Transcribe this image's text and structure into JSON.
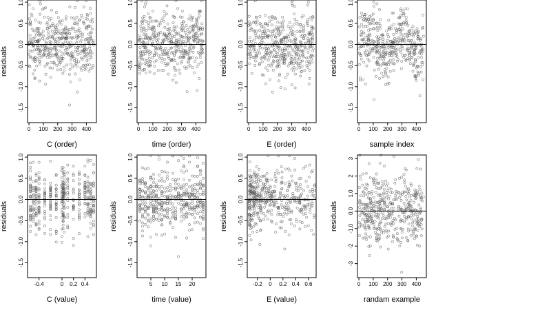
{
  "chart_data": [
    {
      "type": "scatter",
      "xlabel": "C (order)",
      "ylabel": "residuals",
      "xlim": [
        -10,
        470
      ],
      "ylim": [
        -1.85,
        1.05
      ],
      "xticks": [
        0,
        100,
        200,
        300,
        400
      ],
      "yticks": [
        -1.5,
        -1.0,
        -0.5,
        0.0,
        0.5,
        1.0
      ],
      "reference_line_y": 0,
      "n": 450,
      "x_kind": "index",
      "x_range": [
        0,
        450
      ],
      "pattern": "none",
      "sd": 0.38,
      "seed": 11
    },
    {
      "type": "scatter",
      "xlabel": "time (order)",
      "ylabel": "residuals",
      "xlim": [
        -10,
        470
      ],
      "ylim": [
        -1.85,
        1.05
      ],
      "xticks": [
        0,
        100,
        200,
        300,
        400
      ],
      "yticks": [
        -1.5,
        -1.0,
        -0.5,
        0.0,
        0.5,
        1.0
      ],
      "reference_line_y": 0,
      "n": 450,
      "x_kind": "index",
      "x_range": [
        0,
        450
      ],
      "pattern": "none",
      "sd": 0.38,
      "seed": 23
    },
    {
      "type": "scatter",
      "xlabel": "E (order)",
      "ylabel": "residuals",
      "xlim": [
        -10,
        470
      ],
      "ylim": [
        -1.85,
        1.05
      ],
      "xticks": [
        0,
        100,
        200,
        300,
        400
      ],
      "yticks": [
        -1.5,
        -1.0,
        -0.5,
        0.0,
        0.5,
        1.0
      ],
      "reference_line_y": 0,
      "n": 450,
      "x_kind": "index",
      "x_range": [
        0,
        450
      ],
      "pattern": "none",
      "sd": 0.38,
      "seed": 37
    },
    {
      "type": "scatter",
      "xlabel": "sample index",
      "ylabel": "residuals",
      "xlim": [
        -10,
        470
      ],
      "ylim": [
        -1.85,
        1.05
      ],
      "xticks": [
        0,
        100,
        200,
        300,
        400
      ],
      "yticks": [
        -1.5,
        -1.0,
        -0.5,
        0.0,
        0.5,
        1.0
      ],
      "reference_line_y": 0,
      "n": 450,
      "x_kind": "index",
      "x_range": [
        0,
        450
      ],
      "pattern": "waves",
      "sd": 0.38,
      "seed": 41
    },
    {
      "type": "scatter",
      "xlabel": "C (value)",
      "ylabel": "residuals",
      "xlim": [
        -0.6,
        0.6
      ],
      "ylim": [
        -1.85,
        1.05
      ],
      "xticks": [
        -0.4,
        0.0,
        0.2,
        0.4
      ],
      "yticks": [
        -1.5,
        -1.0,
        -0.5,
        0.0,
        0.5,
        1.0
      ],
      "reference_line_y": 0,
      "n": 450,
      "x_kind": "discrete",
      "x_levels": [
        -0.55,
        -0.5,
        -0.45,
        -0.4,
        -0.3,
        -0.2,
        -0.1,
        0.0,
        0.02,
        0.04,
        0.1,
        0.2,
        0.3,
        0.4,
        0.45,
        0.5,
        0.55
      ],
      "pattern": "none",
      "sd": 0.38,
      "seed": 53
    },
    {
      "type": "scatter",
      "xlabel": "time (value)",
      "ylabel": "residuals",
      "xlim": [
        0,
        25
      ],
      "ylim": [
        -1.85,
        1.05
      ],
      "xticks": [
        5,
        10,
        15,
        20
      ],
      "yticks": [
        -1.5,
        -1.0,
        -0.5,
        0.0,
        0.5,
        1.0
      ],
      "reference_line_y": 0,
      "n": 450,
      "x_kind": "discrete",
      "x_levels": [
        1,
        2,
        3,
        4,
        5,
        6,
        7,
        8,
        9,
        10,
        11,
        12,
        13,
        14,
        15,
        16,
        17,
        18,
        19,
        20,
        21,
        22,
        23,
        24
      ],
      "pattern": "none",
      "sd": 0.38,
      "seed": 67
    },
    {
      "type": "scatter",
      "xlabel": "E (value)",
      "ylabel": "residuals",
      "xlim": [
        -0.36,
        0.72
      ],
      "ylim": [
        -1.85,
        1.05
      ],
      "xticks": [
        -0.2,
        0.0,
        0.2,
        0.4,
        0.6
      ],
      "yticks": [
        -1.5,
        -1.0,
        -0.5,
        0.0,
        0.5,
        1.0
      ],
      "reference_line_y": 0,
      "n": 450,
      "x_kind": "skewed",
      "x_range": [
        -0.33,
        0.7
      ],
      "pattern": "none",
      "sd": 0.38,
      "seed": 79
    },
    {
      "type": "scatter",
      "xlabel": "randam example",
      "ylabel": "residuals",
      "xlim": [
        -10,
        470
      ],
      "ylim": [
        -3.8,
        3.2
      ],
      "xticks": [
        0,
        100,
        200,
        300,
        400
      ],
      "yticks": [
        -3,
        -2,
        -1,
        0,
        1,
        2,
        3
      ],
      "reference_line_y": 0,
      "n": 450,
      "x_kind": "index",
      "x_range": [
        0,
        450
      ],
      "pattern": "none",
      "sd": 1.0,
      "seed": 97
    }
  ]
}
